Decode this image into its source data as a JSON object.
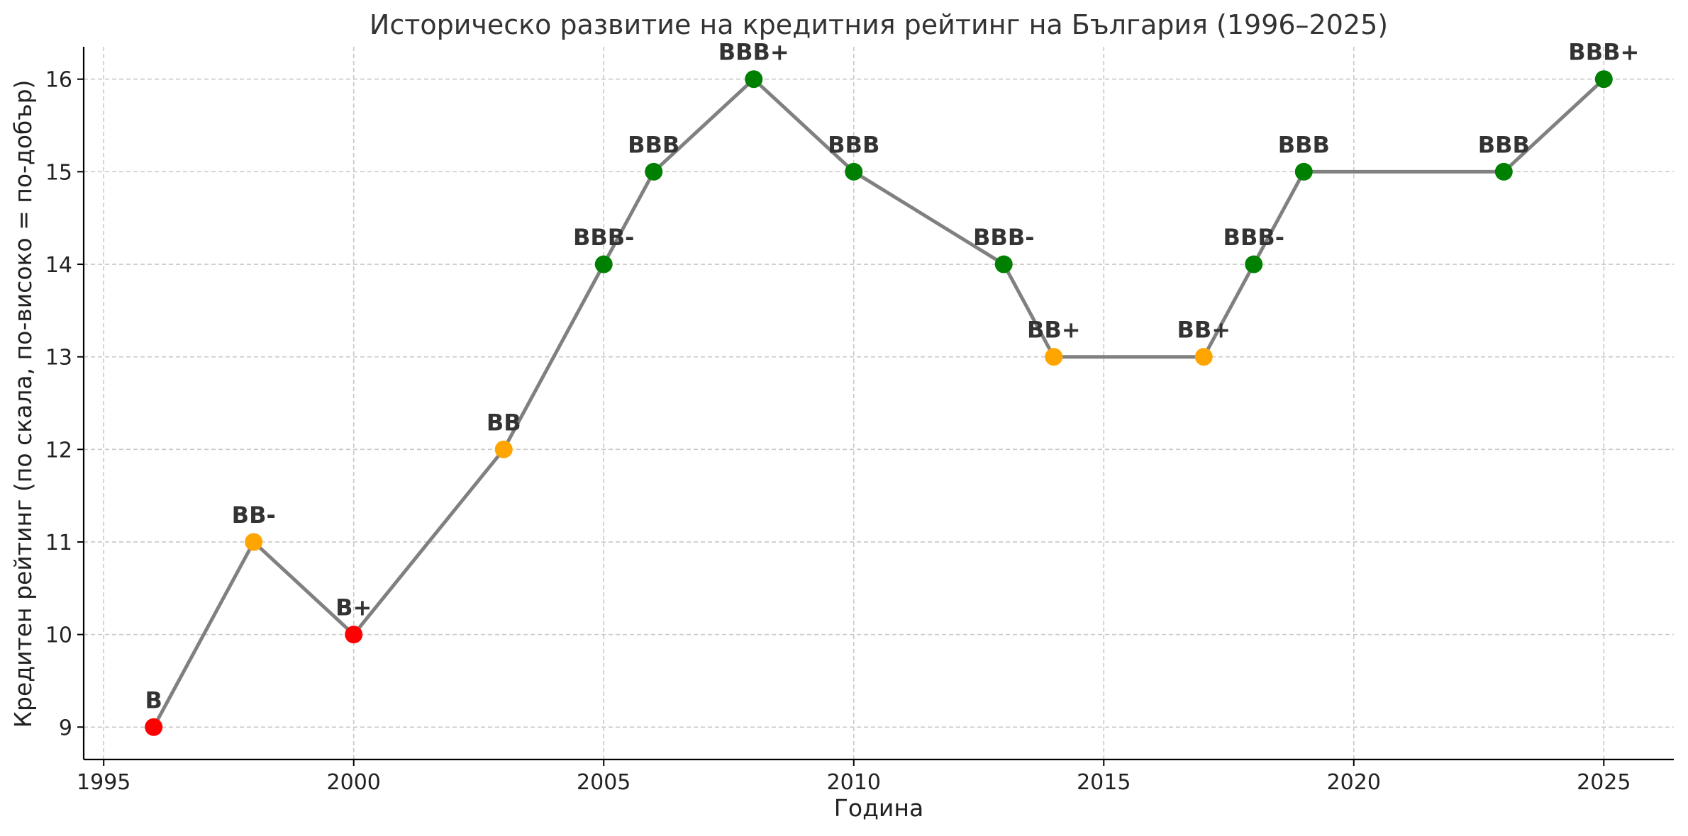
{
  "chart_data": {
    "type": "line",
    "title": "Историческо развитие на кредитния рейтинг на България (1996–2025)",
    "xlabel": "Година",
    "ylabel": "Кредитен рейтинг (по скала, по-високо = по-добър)",
    "xlim": [
      1994.6,
      2026.4
    ],
    "ylim": [
      8.65,
      16.35
    ],
    "x_ticks": [
      1995,
      2000,
      2005,
      2010,
      2015,
      2020,
      2025
    ],
    "y_ticks": [
      9,
      10,
      11,
      12,
      13,
      14,
      15,
      16
    ],
    "grid": true,
    "line_color": "#808080",
    "points": [
      {
        "x": 1996,
        "y": 9,
        "label": "B",
        "color": "#ff0000"
      },
      {
        "x": 1998,
        "y": 11,
        "label": "BB-",
        "color": "#ffa500"
      },
      {
        "x": 2000,
        "y": 10,
        "label": "B+",
        "color": "#ff0000"
      },
      {
        "x": 2003,
        "y": 12,
        "label": "BB",
        "color": "#ffa500"
      },
      {
        "x": 2005,
        "y": 14,
        "label": "BBB-",
        "color": "#008000"
      },
      {
        "x": 2006,
        "y": 15,
        "label": "BBB",
        "color": "#008000"
      },
      {
        "x": 2008,
        "y": 16,
        "label": "BBB+",
        "color": "#008000"
      },
      {
        "x": 2010,
        "y": 15,
        "label": "BBB",
        "color": "#008000"
      },
      {
        "x": 2013,
        "y": 14,
        "label": "BBB-",
        "color": "#008000"
      },
      {
        "x": 2014,
        "y": 13,
        "label": "BB+",
        "color": "#ffa500"
      },
      {
        "x": 2017,
        "y": 13,
        "label": "BB+",
        "color": "#ffa500"
      },
      {
        "x": 2018,
        "y": 14,
        "label": "BBB-",
        "color": "#008000"
      },
      {
        "x": 2019,
        "y": 15,
        "label": "BBB",
        "color": "#008000"
      },
      {
        "x": 2023,
        "y": 15,
        "label": "BBB",
        "color": "#008000"
      },
      {
        "x": 2025,
        "y": 16,
        "label": "BBB+",
        "color": "#008000"
      }
    ]
  }
}
